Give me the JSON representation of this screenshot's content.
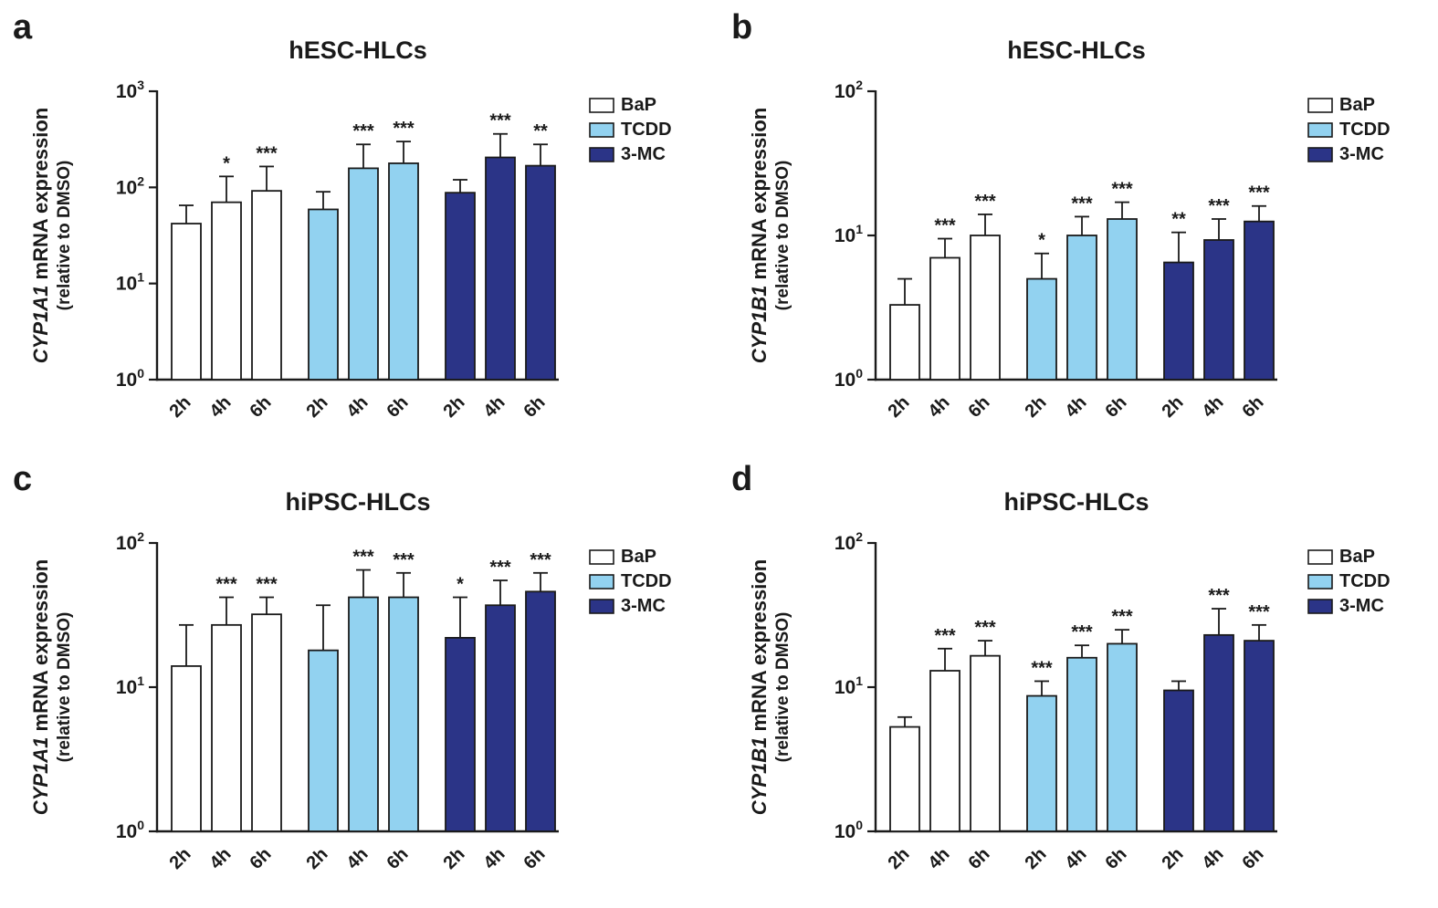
{
  "figure": {
    "background": "#ffffff",
    "axis_color": "#1a1a1a",
    "series_colors": {
      "BaP": "#ffffff",
      "TCDD": "#92d2f0",
      "3-MC": "#2b3487"
    }
  },
  "chart_data": [
    {
      "panel_label": "a",
      "type": "bar",
      "title": "hESC-HLCs",
      "ylabel_gene": "CYP1A1",
      "ylabel_text": "mRNA expression",
      "ylabel_sub": "(relative to DMSO)",
      "yscale": "log",
      "ylim": [
        1,
        1000
      ],
      "yticks_exp": [
        0,
        1,
        2,
        3
      ],
      "grid": false,
      "legend_position": "right",
      "categories": [
        "2h",
        "4h",
        "6h"
      ],
      "legend": [
        "BaP",
        "TCDD",
        "3-MC"
      ],
      "series": [
        {
          "name": "BaP",
          "values": [
            42,
            70,
            92
          ],
          "error_top": [
            65,
            130,
            165
          ],
          "sig": [
            "",
            "*",
            "***"
          ]
        },
        {
          "name": "TCDD",
          "values": [
            59,
            158,
            178
          ],
          "error_top": [
            90,
            280,
            300
          ],
          "sig": [
            "",
            "***",
            "***"
          ]
        },
        {
          "name": "3-MC",
          "values": [
            88,
            205,
            168
          ],
          "error_top": [
            120,
            360,
            280
          ],
          "sig": [
            "",
            "***",
            "**"
          ]
        }
      ]
    },
    {
      "panel_label": "b",
      "type": "bar",
      "title": "hESC-HLCs",
      "ylabel_gene": "CYP1B1",
      "ylabel_text": "mRNA expression",
      "ylabel_sub": "(relative to DMSO)",
      "yscale": "log",
      "ylim": [
        1,
        100
      ],
      "yticks_exp": [
        0,
        1,
        2
      ],
      "grid": false,
      "legend_position": "right",
      "categories": [
        "2h",
        "4h",
        "6h"
      ],
      "legend": [
        "BaP",
        "TCDD",
        "3-MC"
      ],
      "series": [
        {
          "name": "BaP",
          "values": [
            3.3,
            7.0,
            10.0
          ],
          "error_top": [
            5.0,
            9.5,
            14.0
          ],
          "sig": [
            "",
            "***",
            "***"
          ]
        },
        {
          "name": "TCDD",
          "values": [
            5.0,
            10.0,
            13.0
          ],
          "error_top": [
            7.5,
            13.5,
            17.0
          ],
          "sig": [
            "*",
            "***",
            "***"
          ]
        },
        {
          "name": "3-MC",
          "values": [
            6.5,
            9.3,
            12.5
          ],
          "error_top": [
            10.5,
            13.0,
            16.0
          ],
          "sig": [
            "**",
            "***",
            "***"
          ]
        }
      ]
    },
    {
      "panel_label": "c",
      "type": "bar",
      "title": "hiPSC-HLCs",
      "ylabel_gene": "CYP1A1",
      "ylabel_text": "mRNA expression",
      "ylabel_sub": "(relative to DMSO)",
      "yscale": "log",
      "ylim": [
        1,
        100
      ],
      "yticks_exp": [
        0,
        1,
        2
      ],
      "grid": false,
      "legend_position": "right",
      "categories": [
        "2h",
        "4h",
        "6h"
      ],
      "legend": [
        "BaP",
        "TCDD",
        "3-MC"
      ],
      "series": [
        {
          "name": "BaP",
          "values": [
            14,
            27,
            32
          ],
          "error_top": [
            27,
            42,
            42
          ],
          "sig": [
            "",
            "***",
            "***"
          ]
        },
        {
          "name": "TCDD",
          "values": [
            18,
            42,
            42
          ],
          "error_top": [
            37,
            65,
            62
          ],
          "sig": [
            "",
            "***",
            "***"
          ]
        },
        {
          "name": "3-MC",
          "values": [
            22,
            37,
            46
          ],
          "error_top": [
            42,
            55,
            62
          ],
          "sig": [
            "*",
            "***",
            "***"
          ]
        }
      ]
    },
    {
      "panel_label": "d",
      "type": "bar",
      "title": "hiPSC-HLCs",
      "ylabel_gene": "CYP1B1",
      "ylabel_text": "mRNA expression",
      "ylabel_sub": "(relative to DMSO)",
      "yscale": "log",
      "ylim": [
        1,
        100
      ],
      "yticks_exp": [
        0,
        1,
        2
      ],
      "grid": false,
      "legend_position": "right",
      "categories": [
        "2h",
        "4h",
        "6h"
      ],
      "legend": [
        "BaP",
        "TCDD",
        "3-MC"
      ],
      "series": [
        {
          "name": "BaP",
          "values": [
            5.3,
            13,
            16.5
          ],
          "error_top": [
            6.2,
            18.5,
            21
          ],
          "sig": [
            "",
            "***",
            "***"
          ]
        },
        {
          "name": "TCDD",
          "values": [
            8.7,
            16,
            20
          ],
          "error_top": [
            11,
            19.5,
            25
          ],
          "sig": [
            "***",
            "***",
            "***"
          ]
        },
        {
          "name": "3-MC",
          "values": [
            9.5,
            23,
            21
          ],
          "error_top": [
            11,
            35,
            27
          ],
          "sig": [
            "",
            "***",
            "***"
          ]
        }
      ]
    }
  ]
}
